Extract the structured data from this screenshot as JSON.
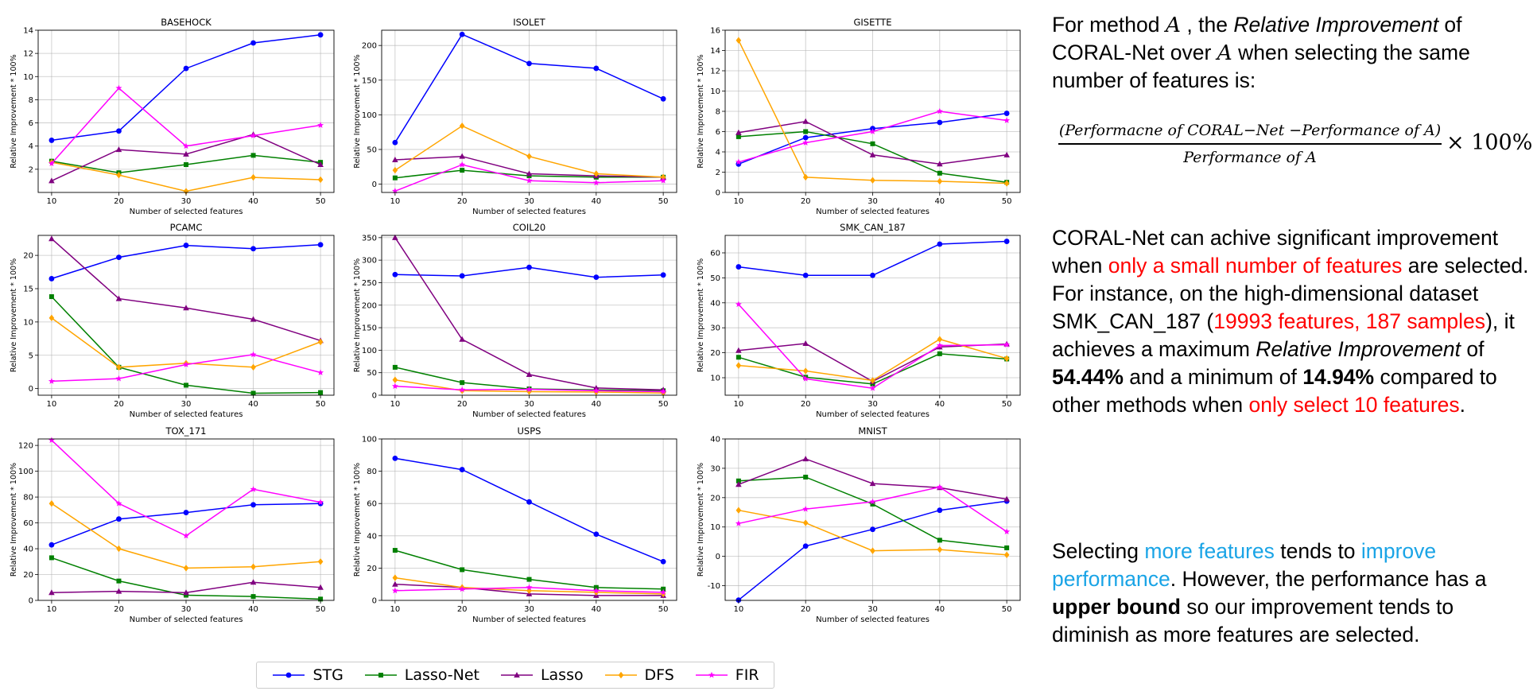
{
  "series_style": [
    {
      "name": "STG",
      "color": "#0000ff",
      "marker": "circle"
    },
    {
      "name": "Lasso-Net",
      "color": "#008000",
      "marker": "square"
    },
    {
      "name": "Lasso",
      "color": "#800080",
      "marker": "triangle"
    },
    {
      "name": "DFS",
      "color": "#ffa500",
      "marker": "diamond"
    },
    {
      "name": "FIR",
      "color": "#ff00ff",
      "marker": "star"
    }
  ],
  "legend": [
    "STG",
    "Lasso-Net",
    "Lasso",
    "DFS",
    "FIR"
  ],
  "chart_data": [
    {
      "type": "line",
      "title": "BASEHOCK",
      "xlabel": "Number of selected features",
      "ylabel": "Relative Improvement * 100%",
      "x": [
        10,
        20,
        30,
        40,
        50
      ],
      "xticks": [
        10,
        20,
        30,
        40,
        50
      ],
      "ylim": [
        0,
        14
      ],
      "yticks": [
        2,
        4,
        6,
        8,
        10,
        12,
        14
      ],
      "grid": true,
      "series": [
        {
          "name": "STG",
          "values": [
            4.5,
            5.3,
            10.7,
            12.9,
            13.6
          ]
        },
        {
          "name": "Lasso-Net",
          "values": [
            2.7,
            1.7,
            2.4,
            3.2,
            2.6
          ]
        },
        {
          "name": "Lasso",
          "values": [
            1.0,
            3.7,
            3.3,
            5.0,
            2.4
          ]
        },
        {
          "name": "DFS",
          "values": [
            2.6,
            1.5,
            0.1,
            1.3,
            1.1
          ]
        },
        {
          "name": "FIR",
          "values": [
            2.5,
            9.0,
            4.0,
            4.9,
            5.8
          ]
        }
      ]
    },
    {
      "type": "line",
      "title": "ISOLET",
      "xlabel": "Number of selected features",
      "ylabel": "Relative Improvement * 100%",
      "x": [
        10,
        20,
        30,
        40,
        50
      ],
      "xticks": [
        10,
        20,
        30,
        40,
        50
      ],
      "ylim": [
        -12,
        222
      ],
      "yticks": [
        0,
        50,
        100,
        150,
        200
      ],
      "grid": true,
      "series": [
        {
          "name": "STG",
          "values": [
            60,
            216,
            174,
            167,
            123
          ]
        },
        {
          "name": "Lasso-Net",
          "values": [
            9,
            20,
            12,
            10,
            10
          ]
        },
        {
          "name": "Lasso",
          "values": [
            35,
            40,
            15,
            12,
            10
          ]
        },
        {
          "name": "DFS",
          "values": [
            20,
            84,
            40,
            15,
            10
          ]
        },
        {
          "name": "FIR",
          "values": [
            -10,
            28,
            5,
            2,
            5
          ]
        }
      ]
    },
    {
      "type": "line",
      "title": "GISETTE",
      "xlabel": "Number of selected features",
      "ylabel": "Relative Improvement * 100%",
      "x": [
        10,
        20,
        30,
        40,
        50
      ],
      "xticks": [
        10,
        20,
        30,
        40,
        50
      ],
      "ylim": [
        0,
        16
      ],
      "yticks": [
        0,
        2,
        4,
        6,
        8,
        10,
        12,
        14,
        16
      ],
      "grid": true,
      "series": [
        {
          "name": "STG",
          "values": [
            2.8,
            5.4,
            6.3,
            6.9,
            7.8
          ]
        },
        {
          "name": "Lasso-Net",
          "values": [
            5.5,
            6.0,
            4.8,
            1.9,
            1.0
          ]
        },
        {
          "name": "Lasso",
          "values": [
            5.9,
            7.0,
            3.7,
            2.8,
            3.7
          ]
        },
        {
          "name": "DFS",
          "values": [
            15.0,
            1.5,
            1.2,
            1.1,
            0.9
          ]
        },
        {
          "name": "FIR",
          "values": [
            3.0,
            4.9,
            6.0,
            8.0,
            7.1
          ]
        }
      ]
    },
    {
      "type": "line",
      "title": "PCAMC",
      "xlabel": "Number of selected features",
      "ylabel": "Relative Improvement * 100%",
      "x": [
        10,
        20,
        30,
        40,
        50
      ],
      "xticks": [
        10,
        20,
        30,
        40,
        50
      ],
      "ylim": [
        -1,
        23
      ],
      "yticks": [
        0,
        5,
        10,
        15,
        20
      ],
      "grid": true,
      "series": [
        {
          "name": "STG",
          "values": [
            16.5,
            19.7,
            21.5,
            21.0,
            21.6
          ]
        },
        {
          "name": "Lasso-Net",
          "values": [
            13.8,
            3.2,
            0.5,
            -0.7,
            -0.6
          ]
        },
        {
          "name": "Lasso",
          "values": [
            22.5,
            13.5,
            12.1,
            10.4,
            7.2
          ]
        },
        {
          "name": "DFS",
          "values": [
            10.6,
            3.2,
            3.8,
            3.2,
            7.0
          ]
        },
        {
          "name": "FIR",
          "values": [
            1.1,
            1.5,
            3.6,
            5.1,
            2.4
          ]
        }
      ]
    },
    {
      "type": "line",
      "title": "COIL20",
      "xlabel": "Number of selected features",
      "ylabel": "Relative Improvement * 100%",
      "x": [
        10,
        20,
        30,
        40,
        50
      ],
      "xticks": [
        10,
        20,
        30,
        40,
        50
      ],
      "ylim": [
        0,
        355
      ],
      "yticks": [
        0,
        50,
        100,
        150,
        200,
        250,
        300,
        350
      ],
      "grid": true,
      "series": [
        {
          "name": "STG",
          "values": [
            268,
            265,
            284,
            262,
            267
          ]
        },
        {
          "name": "Lasso-Net",
          "values": [
            62,
            28,
            14,
            12,
            10
          ]
        },
        {
          "name": "Lasso",
          "values": [
            350,
            124,
            46,
            16,
            12
          ]
        },
        {
          "name": "DFS",
          "values": [
            34,
            10,
            8,
            7,
            5
          ]
        },
        {
          "name": "FIR",
          "values": [
            20,
            12,
            13,
            10,
            8
          ]
        }
      ]
    },
    {
      "type": "line",
      "title": "SMK_CAN_187",
      "xlabel": "Number of selected features",
      "ylabel": "Relative Improvement * 100%",
      "x": [
        10,
        20,
        30,
        40,
        50
      ],
      "xticks": [
        10,
        20,
        30,
        40,
        50
      ],
      "ylim": [
        3,
        67
      ],
      "yticks": [
        10,
        20,
        30,
        40,
        50,
        60
      ],
      "grid": true,
      "series": [
        {
          "name": "STG",
          "values": [
            54.4,
            51.0,
            51.0,
            63.5,
            64.6
          ]
        },
        {
          "name": "Lasso-Net",
          "values": [
            18.2,
            10.2,
            7.5,
            19.6,
            17.5
          ]
        },
        {
          "name": "Lasso",
          "values": [
            20.9,
            23.7,
            8.5,
            22.3,
            23.5
          ]
        },
        {
          "name": "DFS",
          "values": [
            14.9,
            12.7,
            8.9,
            25.4,
            17.7
          ]
        },
        {
          "name": "FIR",
          "values": [
            39.4,
            9.6,
            5.8,
            22.9,
            23.2
          ]
        }
      ]
    },
    {
      "type": "line",
      "title": "TOX_171",
      "xlabel": "Number of selected features",
      "ylabel": "Relative Improvement * 100%",
      "x": [
        10,
        20,
        30,
        40,
        50
      ],
      "xticks": [
        10,
        20,
        30,
        40,
        50
      ],
      "ylim": [
        0,
        125
      ],
      "yticks": [
        0,
        20,
        40,
        60,
        80,
        100,
        120
      ],
      "grid": true,
      "series": [
        {
          "name": "STG",
          "values": [
            43,
            63,
            68,
            74,
            75
          ]
        },
        {
          "name": "Lasso-Net",
          "values": [
            33,
            15,
            4,
            3,
            1
          ]
        },
        {
          "name": "Lasso",
          "values": [
            6,
            7,
            6,
            14,
            10
          ]
        },
        {
          "name": "DFS",
          "values": [
            75,
            40,
            25,
            26,
            30
          ]
        },
        {
          "name": "FIR",
          "values": [
            124,
            75,
            50,
            86,
            76
          ]
        }
      ]
    },
    {
      "type": "line",
      "title": "USPS",
      "xlabel": "Number of selected features",
      "ylabel": "Relative Improvement * 100%",
      "x": [
        10,
        20,
        30,
        40,
        50
      ],
      "xticks": [
        10,
        20,
        30,
        40,
        50
      ],
      "ylim": [
        0,
        100
      ],
      "yticks": [
        0,
        20,
        40,
        60,
        80,
        100
      ],
      "grid": true,
      "series": [
        {
          "name": "STG",
          "values": [
            88,
            81,
            61,
            41,
            24
          ]
        },
        {
          "name": "Lasso-Net",
          "values": [
            31,
            19,
            13,
            8,
            7
          ]
        },
        {
          "name": "Lasso",
          "values": [
            10,
            8,
            4,
            3,
            3
          ]
        },
        {
          "name": "DFS",
          "values": [
            14,
            8,
            6,
            5,
            4
          ]
        },
        {
          "name": "FIR",
          "values": [
            6,
            7,
            8,
            6,
            5
          ]
        }
      ]
    },
    {
      "type": "line",
      "title": "MNIST",
      "xlabel": "Number of selected features",
      "ylabel": "Relative Improvement * 100%",
      "x": [
        10,
        20,
        30,
        40,
        50
      ],
      "xticks": [
        10,
        20,
        30,
        40,
        50
      ],
      "ylim": [
        -15,
        40
      ],
      "yticks": [
        -10,
        0,
        10,
        20,
        30,
        40
      ],
      "grid": true,
      "series": [
        {
          "name": "STG",
          "values": [
            -14.9,
            3.5,
            9.2,
            15.7,
            18.8
          ]
        },
        {
          "name": "Lasso-Net",
          "values": [
            25.7,
            27.0,
            17.8,
            5.5,
            2.9
          ]
        },
        {
          "name": "Lasso",
          "values": [
            24.5,
            33.2,
            24.8,
            23.4,
            19.5
          ]
        },
        {
          "name": "DFS",
          "values": [
            15.7,
            11.4,
            1.9,
            2.3,
            0.5
          ]
        },
        {
          "name": "FIR",
          "values": [
            11.2,
            16.1,
            18.6,
            23.6,
            8.4
          ]
        }
      ]
    }
  ],
  "text_panel": {
    "definition": {
      "t1": "For method ",
      "var": "A",
      "t2": " , the ",
      "term": "Relative Improvement",
      "t3": " of CORAL-Net over ",
      "t4": " when selecting the same number of features is:"
    },
    "formula": {
      "numerator": "(Performacne of CORAL−Net −Performance of A)",
      "denominator": "Performance of A",
      "suffix": "× 100%"
    },
    "paragraph2": {
      "t1": "CORAL-Net can achive significant improvement when ",
      "red1": "only a small number of features",
      "t2": " are selected. For instance, on the high-dimensional dataset SMK_CAN_187 (",
      "red2": "19993 features, 187 samples",
      "t3": "), it achieves a maximum ",
      "term": "Relative Improvement",
      "t4": " of ",
      "max": "54.44%",
      "t5": " and a minimum of ",
      "min": "14.94%",
      "t6": " compared to other methods when ",
      "red3": "only select 10 features",
      "t7": "."
    },
    "paragraph3": {
      "t1": "Selecting ",
      "blue1": "more features",
      "t2": " tends to ",
      "blue2": "improve performance",
      "t3": ". However, the performance has a ",
      "bold": "upper bound",
      "t4": " so our improvement tends to diminish as more features are selected."
    }
  }
}
